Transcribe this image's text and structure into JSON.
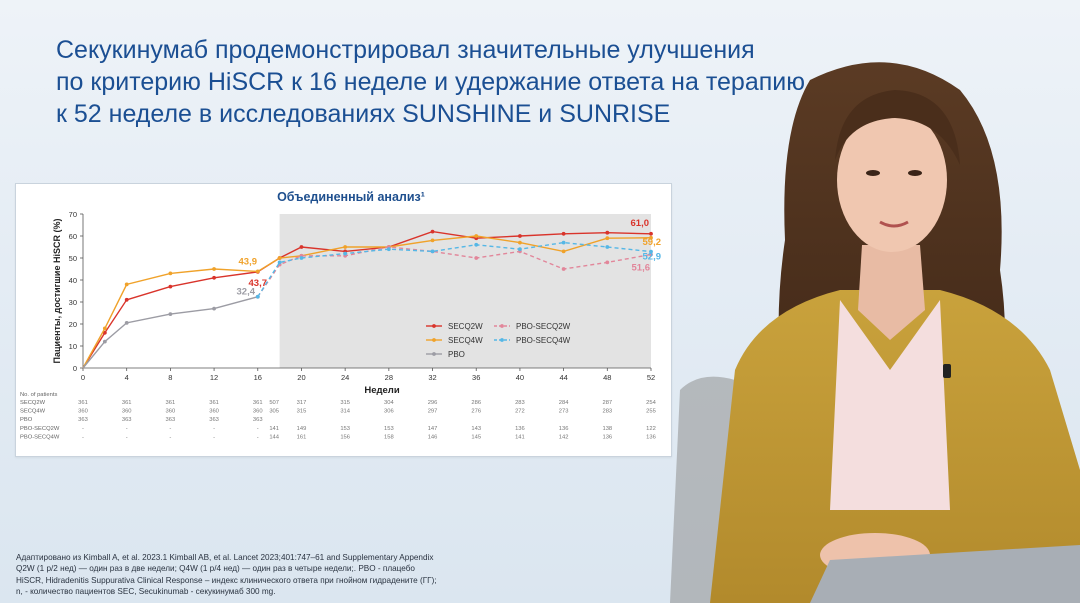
{
  "slide": {
    "title_lines": [
      "Секукинумаб продемонстрировал значительные улучшения",
      "по критерию HiSCR к 16 неделе и удержание ответа на терапию",
      "к 52 неделе в исследованиях SUNSHINE и SUNRISE"
    ],
    "footnote_lines": [
      "Адаптировано из Kimball A, et al. 2023.1 Kimball AB, et al. Lancet 2023;401:747–61 and Supplementary Appendix",
      "Q2W (1 р/2 нед) — один раз в две недели; Q4W (1 р/4 нед) — один раз в четыре недели;. PBO - плацебо",
      "HiSCR, Hidradenitis Suppurativa Clinical Response – индекс клинического ответа при гнойном гидрадените (ГГ);",
      "n, - количество пациентов SEC, Secukinumab - секукинумаб 300 mg."
    ]
  },
  "chart_data": {
    "type": "line",
    "title": "Объединенный анализ¹",
    "xlabel": "Недели",
    "ylabel": "Пациенты, достигшие HiSCR (%)",
    "ylim": [
      0,
      70
    ],
    "xlim": [
      0,
      52
    ],
    "yticks": [
      0,
      10,
      20,
      30,
      40,
      50,
      60,
      70
    ],
    "xticks": [
      0,
      4,
      8,
      12,
      16,
      20,
      24,
      28,
      32,
      36,
      40,
      44,
      48,
      52
    ],
    "shaded_region": [
      18,
      52
    ],
    "grid": false,
    "legend_position": "bottom-right",
    "series": [
      {
        "name": "SECQ2W",
        "color": "#d9342b",
        "dash": false,
        "x": [
          0,
          2,
          4,
          8,
          12,
          16,
          18,
          20,
          24,
          28,
          32,
          36,
          40,
          44,
          48,
          52
        ],
        "y": [
          0,
          16,
          31,
          37,
          41,
          43.7,
          50,
          55,
          53,
          55,
          62,
          59,
          60,
          61,
          61.5,
          61.0
        ],
        "end_label": "61,0",
        "mid_label": "43,7",
        "mid_x": 16
      },
      {
        "name": "SECQ4W",
        "color": "#f0a22a",
        "dash": false,
        "x": [
          0,
          2,
          4,
          8,
          12,
          16,
          18,
          20,
          24,
          28,
          32,
          36,
          40,
          44,
          48,
          52
        ],
        "y": [
          0,
          18,
          38,
          43,
          45,
          43.9,
          50,
          51,
          55,
          55,
          58,
          60,
          57,
          53,
          59,
          59.2
        ],
        "end_label": "59,2",
        "mid_label": "43,9",
        "mid_x": 16
      },
      {
        "name": "PBO",
        "color": "#9c9ca4",
        "dash": false,
        "x": [
          0,
          2,
          4,
          8,
          12,
          16
        ],
        "y": [
          0,
          12,
          20.5,
          24.5,
          27,
          32.4
        ],
        "end_label": "32,4"
      },
      {
        "name": "PBO-SECQ2W",
        "color": "#e2869a",
        "dash": true,
        "x": [
          16,
          18,
          20,
          24,
          28,
          32,
          36,
          40,
          44,
          48,
          52
        ],
        "y": [
          32.4,
          47,
          51,
          51,
          55,
          53,
          50,
          53,
          45,
          48,
          51.6
        ],
        "end_label": "51,6"
      },
      {
        "name": "PBO-SECQ4W",
        "color": "#55b7e6",
        "dash": true,
        "x": [
          16,
          18,
          20,
          24,
          28,
          32,
          36,
          40,
          44,
          48,
          52
        ],
        "y": [
          32.4,
          48,
          50,
          52,
          54,
          53,
          56,
          54,
          57,
          55,
          52.9
        ],
        "end_label": "52,9"
      }
    ],
    "patients_table": {
      "header": "No. of patients",
      "weeks": [
        0,
        4,
        8,
        12,
        16,
        20,
        24,
        28,
        32,
        36,
        40,
        44,
        48,
        52
      ],
      "rows": [
        {
          "name": "SECQ2W",
          "start": [
            "361",
            "361",
            "361",
            "361",
            "361"
          ],
          "extra": "507",
          "rest": [
            "317",
            "315",
            "304",
            "296",
            "286",
            "283",
            "284",
            "287",
            "254"
          ]
        },
        {
          "name": "SECQ4W",
          "start": [
            "360",
            "360",
            "360",
            "360",
            "360"
          ],
          "extra": "305",
          "rest": [
            "315",
            "314",
            "306",
            "297",
            "276",
            "272",
            "273",
            "283",
            "255"
          ]
        },
        {
          "name": "PBO",
          "start": [
            "363",
            "363",
            "363",
            "363",
            "363"
          ],
          "extra": "",
          "rest": []
        },
        {
          "name": "PBO-SECQ2W",
          "start": [
            "-",
            "-",
            "-",
            "-",
            "-"
          ],
          "extra": "141",
          "rest": [
            "149",
            "153",
            "153",
            "147",
            "143",
            "136",
            "136",
            "138",
            "122"
          ]
        },
        {
          "name": "PBO-SECQ4W",
          "start": [
            "-",
            "-",
            "-",
            "-",
            "-"
          ],
          "extra": "144",
          "rest": [
            "161",
            "156",
            "158",
            "146",
            "145",
            "141",
            "142",
            "136",
            "136"
          ]
        }
      ]
    }
  }
}
